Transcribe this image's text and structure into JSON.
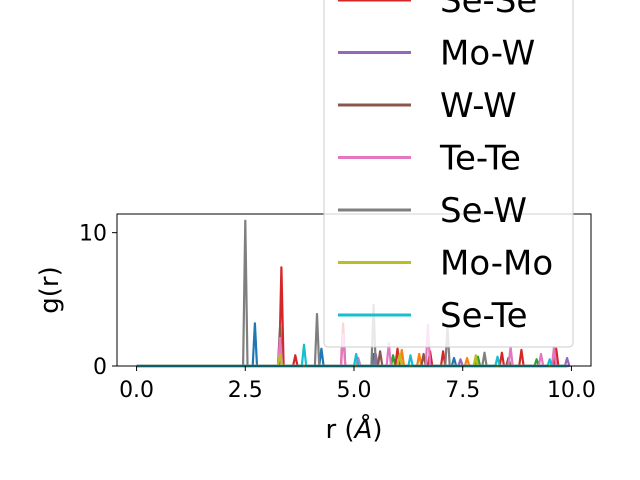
{
  "chart_data": {
    "type": "line",
    "xlabel_main": "r (",
    "xlabel_unit": "Å",
    "xlabel_close": ")",
    "ylabel": "g(r)",
    "xlim": [
      -0.45,
      10.45
    ],
    "ylim": [
      0,
      11.4
    ],
    "xticks": [
      0.0,
      2.5,
      5.0,
      7.5,
      10.0
    ],
    "xtick_labels": [
      "0.0",
      "2.5",
      "5.0",
      "7.5",
      "10.0"
    ],
    "yticks": [
      0,
      10
    ],
    "ytick_labels": [
      "0",
      "10"
    ],
    "grid": false,
    "legend_placement": "upper-right, overflowing above the plot area",
    "legend_entries": [
      {
        "name": "Se-Se",
        "color": "#d62728"
      },
      {
        "name": "Mo-W",
        "color": "#9467bd"
      },
      {
        "name": "W-W",
        "color": "#8c564b"
      },
      {
        "name": "Te-Te",
        "color": "#e377c2"
      },
      {
        "name": "Se-W",
        "color": "#7f7f7f"
      },
      {
        "name": "Mo-Mo",
        "color": "#bcbd22"
      },
      {
        "name": "Se-Te",
        "color": "#17becf"
      }
    ],
    "series": [
      {
        "name": "",
        "color": "#1f77b4",
        "peaks": [
          [
            2.72,
            3.2
          ],
          [
            4.25,
            1.3
          ],
          [
            5.45,
            0.9
          ],
          [
            6.05,
            0.7
          ],
          [
            7.3,
            0.6
          ]
        ]
      },
      {
        "name": "",
        "color": "#ff7f0e",
        "peaks": [
          [
            6.1,
            1.2
          ],
          [
            6.5,
            0.9
          ],
          [
            7.6,
            0.6
          ]
        ]
      },
      {
        "name": "",
        "color": "#2ca02c",
        "peaks": [
          [
            5.9,
            0.8
          ],
          [
            7.85,
            0.7
          ],
          [
            9.2,
            0.5
          ]
        ]
      },
      {
        "name": "Se-Se",
        "color": "#d62728",
        "peaks": [
          [
            3.33,
            7.4
          ],
          [
            3.65,
            0.8
          ],
          [
            4.75,
            3.2
          ],
          [
            6.0,
            1.3
          ],
          [
            6.75,
            1.1
          ],
          [
            7.05,
            1.1
          ],
          [
            8.4,
            1.0
          ],
          [
            8.85,
            1.2
          ],
          [
            9.65,
            1.3
          ]
        ]
      },
      {
        "name": "Mo-W",
        "color": "#9467bd",
        "peaks": [
          [
            5.5,
            0.9
          ],
          [
            7.45,
            0.5
          ],
          [
            9.9,
            0.6
          ]
        ]
      },
      {
        "name": "W-W",
        "color": "#8c564b",
        "peaks": [
          [
            3.3,
            3.0
          ],
          [
            5.6,
            1.1
          ],
          [
            6.6,
            0.9
          ],
          [
            8.55,
            0.6
          ]
        ]
      },
      {
        "name": "Te-Te",
        "color": "#e377c2",
        "peaks": [
          [
            3.3,
            2.1
          ],
          [
            4.75,
            2.4
          ],
          [
            5.1,
            0.6
          ],
          [
            5.8,
            1.7
          ],
          [
            6.7,
            3.1
          ],
          [
            8.6,
            1.4
          ],
          [
            9.3,
            0.9
          ],
          [
            9.6,
            1.4
          ]
        ]
      },
      {
        "name": "Se-W",
        "color": "#7f7f7f",
        "peaks": [
          [
            2.5,
            10.9
          ],
          [
            4.15,
            3.9
          ],
          [
            5.45,
            4.6
          ],
          [
            7.15,
            2.9
          ],
          [
            8.0,
            1.0
          ]
        ]
      },
      {
        "name": "Mo-Mo",
        "color": "#bcbd22",
        "peaks": [
          [
            3.3,
            0.9
          ],
          [
            6.05,
            0.9
          ],
          [
            7.8,
            0.8
          ]
        ]
      },
      {
        "name": "Se-Te",
        "color": "#17becf",
        "peaks": [
          [
            3.85,
            1.6
          ],
          [
            5.05,
            0.9
          ],
          [
            6.3,
            0.8
          ],
          [
            8.3,
            0.7
          ],
          [
            9.5,
            0.5
          ]
        ]
      }
    ]
  }
}
